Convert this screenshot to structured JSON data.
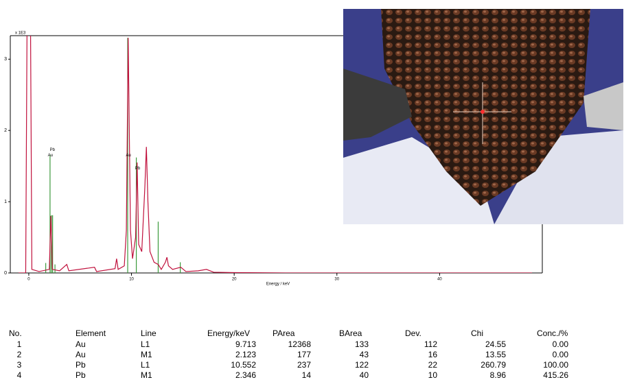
{
  "chart_data": {
    "type": "line",
    "y_unit": "x 1E3",
    "x_label": "Energy / keV",
    "xlim": [
      -1.8,
      50
    ],
    "ylim": [
      0,
      3.33
    ],
    "xticks": [
      0,
      10,
      20,
      30,
      40
    ],
    "yticks": [
      0,
      1,
      2,
      3
    ],
    "series": [
      {
        "color": "#c0103c",
        "x": [
          -1,
          -0.3,
          -0.15,
          0.15,
          0.3,
          1,
          2.0,
          2.15,
          2.3,
          3.0,
          3.7,
          3.9,
          6.4,
          6.6,
          8.4,
          8.55,
          8.7,
          9.3,
          9.5,
          9.68,
          9.9,
          10.1,
          10.4,
          10.55,
          10.7,
          11.0,
          11.3,
          11.45,
          11.6,
          11.8,
          12.2,
          12.6,
          12.9,
          13.3,
          13.45,
          13.6,
          14.0,
          14.8,
          15.3,
          16.5,
          17.3,
          18,
          20,
          25,
          49
        ],
        "values": [
          0,
          0,
          4,
          4,
          0.05,
          0.02,
          0.05,
          0.8,
          0.05,
          0.03,
          0.12,
          0.03,
          0.08,
          0.02,
          0.06,
          0.2,
          0.05,
          0.1,
          0.6,
          3.3,
          0.6,
          0.2,
          0.5,
          1.55,
          0.4,
          0.3,
          1.2,
          1.77,
          1.0,
          0.3,
          0.15,
          0.12,
          0.05,
          0.15,
          0.22,
          0.1,
          0.05,
          0.08,
          0.02,
          0.03,
          0.05,
          0.01,
          0.005,
          0,
          0
        ]
      }
    ],
    "markers": {
      "color": "#3c9a3c",
      "x": [
        1.65,
        2.07,
        2.2,
        2.32,
        2.55,
        9.63,
        10.47,
        12.6,
        14.75
      ],
      "values": [
        0.14,
        1.66,
        0.81,
        0.81,
        0.12,
        3.3,
        1.62,
        0.72,
        0.15
      ]
    },
    "annotations": [
      {
        "text": "Pb",
        "x": 2.3,
        "y": 1.73
      },
      {
        "text": "Au",
        "x": 2.1,
        "y": 1.65
      },
      {
        "text": "Au",
        "x": 9.7,
        "y": 1.65
      },
      {
        "text": "Pb",
        "x": 10.6,
        "y": 1.47
      }
    ]
  },
  "table": {
    "header": [
      "No.",
      "Element",
      "Line",
      "Energy/keV",
      "PArea",
      "BArea",
      "Dev.",
      "Chi",
      "Conc./%"
    ],
    "rows": [
      [
        "1",
        "Au",
        "L1",
        "9.713",
        "12368",
        "133",
        "112",
        "24.55",
        "0.00"
      ],
      [
        "2",
        "Au",
        "M1",
        "2.123",
        "177",
        "43",
        "16",
        "13.55",
        "0.00"
      ],
      [
        "3",
        "Pb",
        "L1",
        "10.552",
        "237",
        "122",
        "22",
        "260.79",
        "100.00"
      ],
      [
        "4",
        "Pb",
        "M1",
        "2.346",
        "14",
        "40",
        "10",
        "8.96",
        "415.26"
      ]
    ]
  }
}
